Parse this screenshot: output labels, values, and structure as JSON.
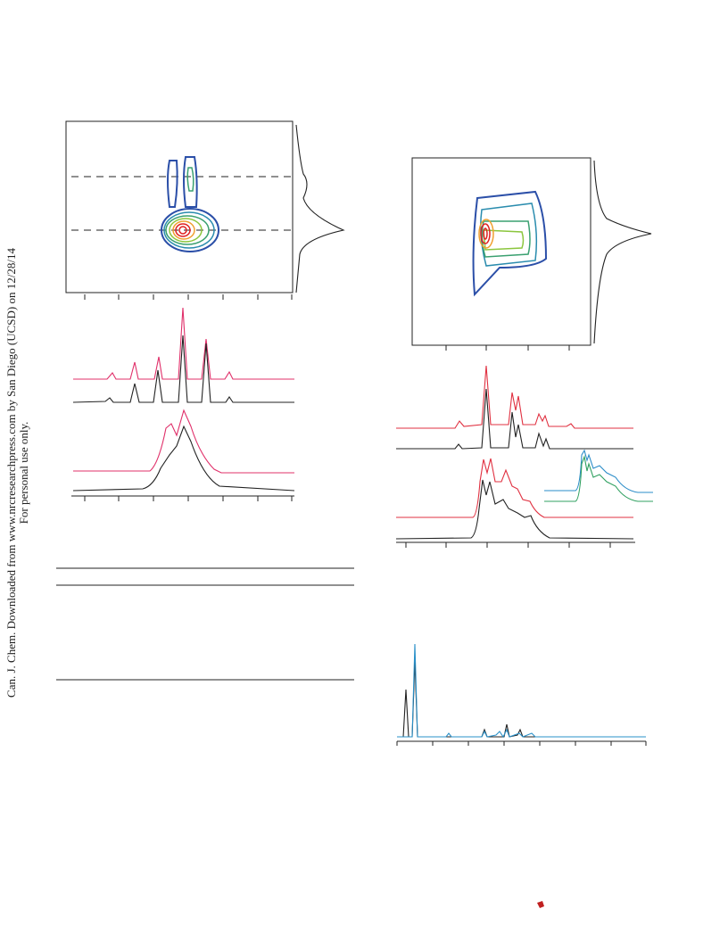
{
  "watermark": {
    "line1": "Can. J. Chem. Downloaded from www.nrcresearchpress.com by San Diego (UCSD) on 12/28/14",
    "line2": "For personal use only."
  }
}
